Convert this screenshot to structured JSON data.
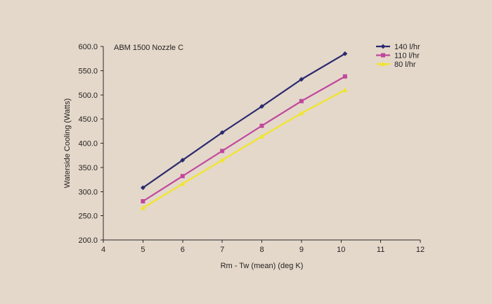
{
  "chart_data": {
    "type": "line",
    "title": "ABM 1500 Nozzle C",
    "xlabel": "Rm - Tw (mean) (deg K)",
    "ylabel": "Waterside Cooling (Watts)",
    "xlim": [
      4,
      12
    ],
    "ylim": [
      200,
      600
    ],
    "x_ticks": [
      4,
      5,
      6,
      7,
      8,
      9,
      10,
      11,
      12
    ],
    "y_ticks": [
      200.0,
      250.0,
      300.0,
      350.0,
      400.0,
      450.0,
      500.0,
      550.0,
      600.0
    ],
    "x_tick_labels": [
      "4",
      "5",
      "6",
      "7",
      "8",
      "9",
      "10",
      "11",
      "12"
    ],
    "y_tick_labels": [
      "200.0",
      "250.0",
      "300.0",
      "350.0",
      "400.0",
      "450.0",
      "500.0",
      "550.0",
      "600.0"
    ],
    "grid": false,
    "legend_position": "top-right",
    "series": [
      {
        "name": "140 l/hr",
        "color": "#2b2a6f",
        "marker": "diamond",
        "x": [
          5.0,
          6.0,
          7.0,
          8.0,
          9.0,
          10.1
        ],
        "y": [
          308,
          365,
          422,
          476,
          532,
          585
        ]
      },
      {
        "name": "110 l/hr",
        "color": "#c0479d",
        "marker": "square",
        "x": [
          5.0,
          6.0,
          7.0,
          8.0,
          9.0,
          10.1
        ],
        "y": [
          280,
          332,
          384,
          436,
          487,
          538
        ]
      },
      {
        "name": "80 l/hr",
        "color": "#f0e52a",
        "marker": "triangle",
        "x": [
          5.0,
          6.0,
          7.0,
          8.0,
          9.0,
          10.1
        ],
        "y": [
          266,
          316,
          365,
          414,
          462,
          510
        ]
      }
    ]
  }
}
